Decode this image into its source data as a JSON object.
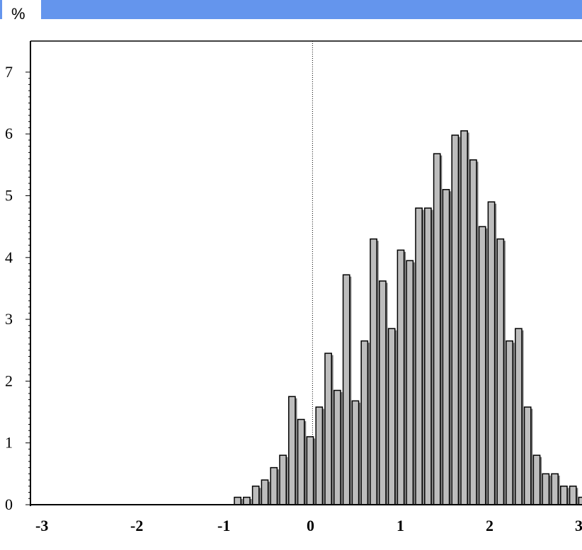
{
  "chart_data": {
    "type": "bar",
    "title": "",
    "xlabel": "",
    "ylabel": "%",
    "xlim": [
      -3,
      3
    ],
    "ylim": [
      0,
      7.2
    ],
    "bin_width": 0.1,
    "x_ticks": [
      "-3",
      "-2",
      "-1",
      "0",
      "1",
      "2",
      "3"
    ],
    "y_ticks": [
      "0",
      "1",
      "2",
      "3",
      "4",
      "5",
      "6",
      "7"
    ],
    "reference_line_x": 0.05,
    "grid": false,
    "legend": "none",
    "bins": [
      {
        "x": -0.8,
        "value": 0.12
      },
      {
        "x": -0.7,
        "value": 0.12
      },
      {
        "x": -0.6,
        "value": 0.3
      },
      {
        "x": -0.5,
        "value": 0.4
      },
      {
        "x": -0.4,
        "value": 0.6
      },
      {
        "x": -0.3,
        "value": 0.8
      },
      {
        "x": -0.2,
        "value": 1.75
      },
      {
        "x": -0.1,
        "value": 1.38
      },
      {
        "x": 0.0,
        "value": 1.1
      },
      {
        "x": 0.1,
        "value": 1.58
      },
      {
        "x": 0.2,
        "value": 2.45
      },
      {
        "x": 0.3,
        "value": 1.85
      },
      {
        "x": 0.4,
        "value": 3.72
      },
      {
        "x": 0.5,
        "value": 1.68
      },
      {
        "x": 0.6,
        "value": 2.65
      },
      {
        "x": 0.7,
        "value": 4.3
      },
      {
        "x": 0.8,
        "value": 3.62
      },
      {
        "x": 0.9,
        "value": 2.85
      },
      {
        "x": 1.0,
        "value": 4.12
      },
      {
        "x": 1.1,
        "value": 3.95
      },
      {
        "x": 1.2,
        "value": 4.8
      },
      {
        "x": 1.3,
        "value": 4.8
      },
      {
        "x": 1.4,
        "value": 5.68
      },
      {
        "x": 1.5,
        "value": 5.1
      },
      {
        "x": 1.6,
        "value": 5.98
      },
      {
        "x": 1.7,
        "value": 6.05
      },
      {
        "x": 1.8,
        "value": 5.58
      },
      {
        "x": 1.9,
        "value": 4.5
      },
      {
        "x": 2.0,
        "value": 4.9
      },
      {
        "x": 2.1,
        "value": 4.3
      },
      {
        "x": 2.2,
        "value": 2.65
      },
      {
        "x": 2.3,
        "value": 2.85
      },
      {
        "x": 2.4,
        "value": 1.58
      },
      {
        "x": 2.5,
        "value": 0.8
      },
      {
        "x": 2.6,
        "value": 0.5
      },
      {
        "x": 2.7,
        "value": 0.5
      },
      {
        "x": 2.8,
        "value": 0.3
      },
      {
        "x": 2.9,
        "value": 0.3
      },
      {
        "x": 3.0,
        "value": 0.12
      }
    ]
  },
  "colors": {
    "header_bar": "#6495ed",
    "bar_fill": "#bdbdbd",
    "bar_shadow": "#7a7a7a",
    "bar_stroke": "#000000",
    "axis": "#000000"
  }
}
